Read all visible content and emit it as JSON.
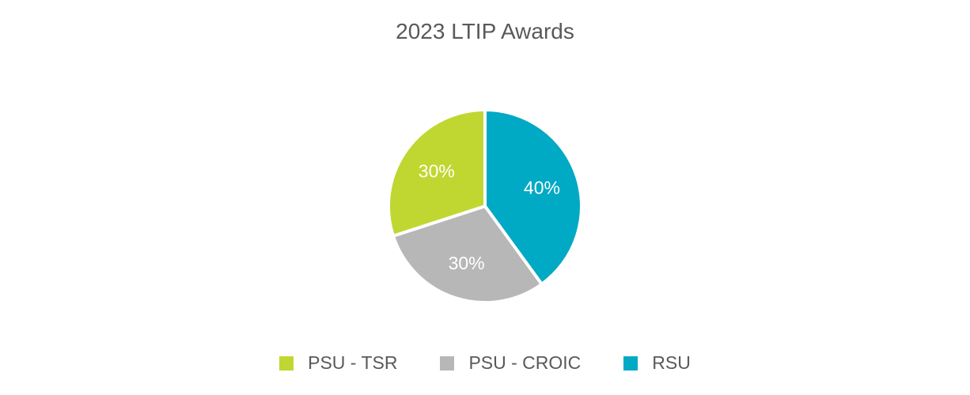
{
  "chart_data": {
    "type": "pie",
    "title": "2023 LTIP Awards",
    "categories": [
      "PSU - TSR",
      "PSU - CROIC",
      "RSU"
    ],
    "values": [
      30,
      30,
      40
    ],
    "data_labels": [
      "30%",
      "30%",
      "40%"
    ],
    "colors": [
      "#c0d731",
      "#b7b7b7",
      "#00a9c4"
    ],
    "legend_position": "bottom"
  }
}
